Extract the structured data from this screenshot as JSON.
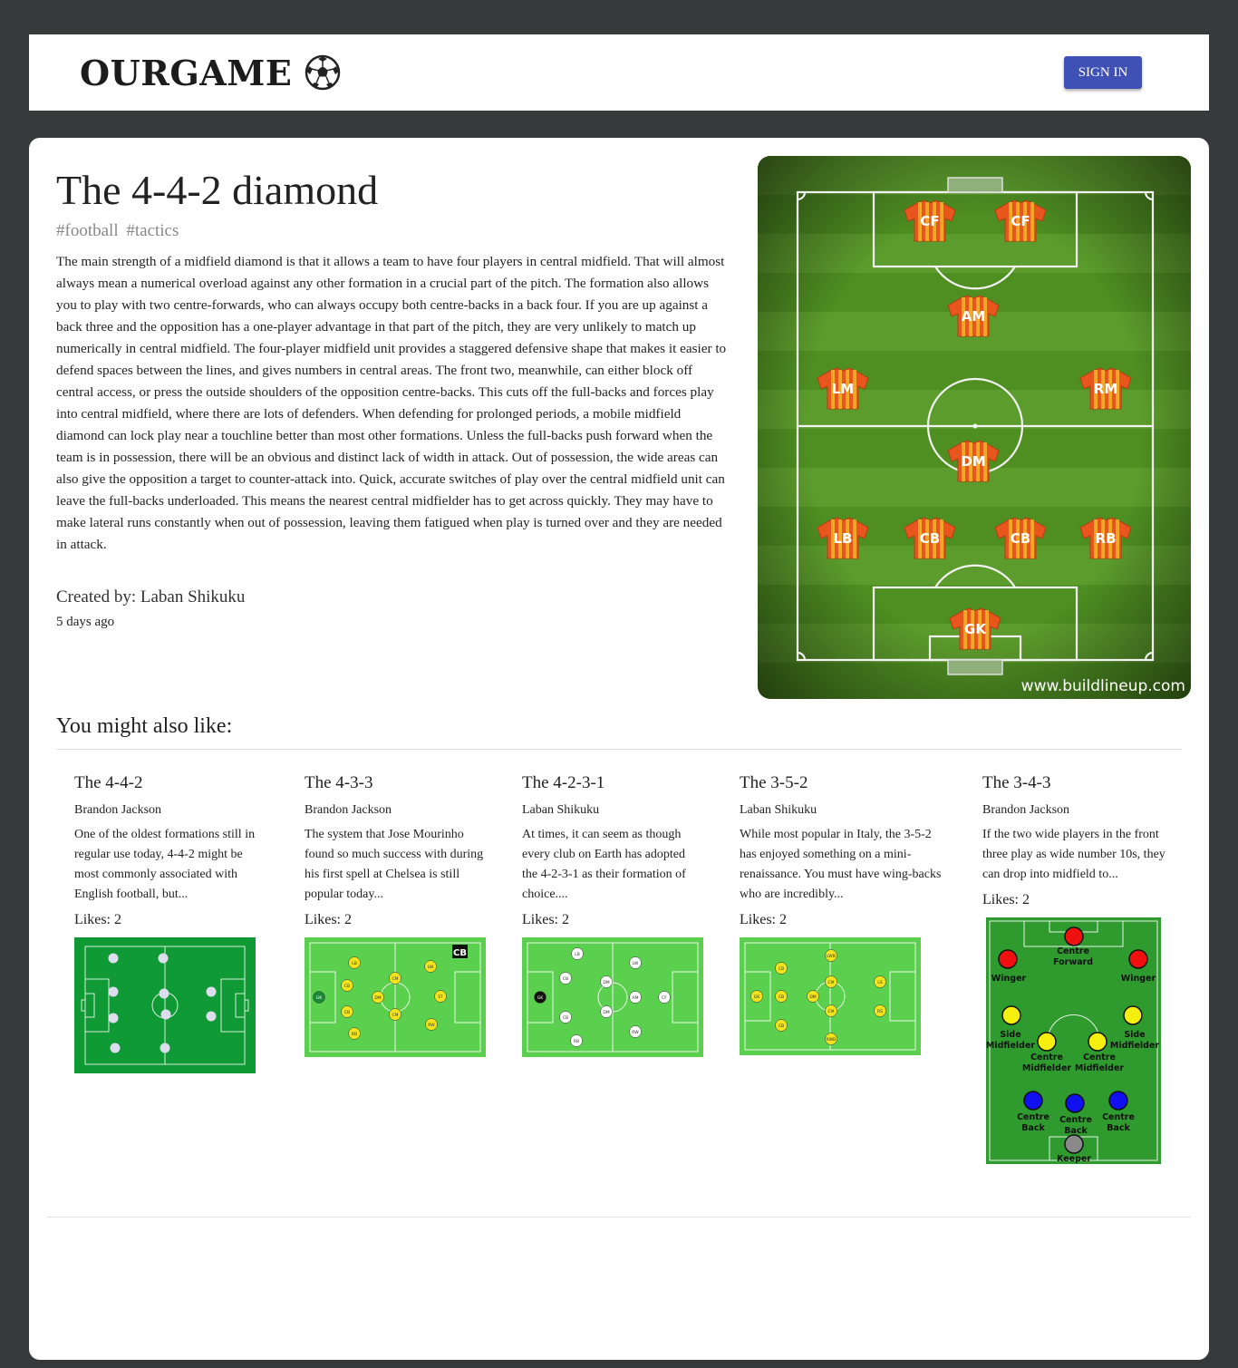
{
  "header": {
    "logo_text": "OURGAME",
    "signin_label": "SIGN IN",
    "accent": "#3f51b5"
  },
  "post": {
    "title": "The 4-4-2 diamond",
    "tags": [
      "#football",
      "#tactics"
    ],
    "body": "The main strength of a midfield diamond is that it allows a team to have four players in central midfield. That will almost always mean a numerical overload against any other formation in a crucial part of the pitch. The formation also allows you to play with two centre-forwards, who can always occupy both centre-backs in a back four. If you are up against a back three and the opposition has a one-player advantage in that part of the pitch, they are very unlikely to match up numerically in central midfield. The four-player midfield unit provides a staggered defensive shape that makes it easier to defend spaces between the lines, and gives numbers in central areas. The front two, meanwhile, can either block off central access, or press the outside shoulders of the opposition centre-backs. This cuts off the full-backs and forces play into central midfield, where there are lots of defenders. When defending for prolonged periods, a mobile midfield diamond can lock play near a touchline better than most other formations. Unless the full-backs push forward when the team is in possession, there will be an obvious and distinct lack of width in attack. Out of possession, the wide areas can also give the opposition a target to counter-attack into. Quick, accurate switches of play over the central midfield unit can leave the full-backs underloaded. This means the nearest central midfielder has to get across quickly. They may have to make lateral runs constantly when out of possession, leaving them fatigued when play is turned over and they are needed in attack.",
    "author": "Created by: Laban Shikuku",
    "time": "5 days ago",
    "image": {
      "watermark": "www.buildlineup.com",
      "positions": [
        "CF",
        "CF",
        "AM",
        "LM",
        "RM",
        "DM",
        "LB",
        "CB",
        "CB",
        "RB",
        "GK"
      ]
    }
  },
  "also": {
    "heading": "You might also like:",
    "items": [
      {
        "title": "The 4-4-2",
        "author": "Brandon Jackson",
        "desc": "One of the oldest formations still in regular use today, 4-4-2 might be most commonly associated with English football, but...",
        "likes": "Likes: 2"
      },
      {
        "title": "The 4-3-3",
        "author": "Brandon Jackson",
        "desc": "The system that Jose Mourinho found so much success with during his first spell at Chelsea is still popular today...",
        "likes": "Likes: 2",
        "badge": "CB",
        "players": [
          "GK",
          "LB",
          "CB",
          "CB",
          "RB",
          "CM",
          "DM",
          "CM",
          "LW",
          "ST",
          "RW"
        ]
      },
      {
        "title": "The 4-2-3-1",
        "author": "Laban Shikuku",
        "desc": "At times, it can seem as though every club on Earth has adopted the 4-2-3-1 as their formation of choice....",
        "likes": "Likes: 2",
        "players": [
          "GK",
          "LB",
          "CB",
          "CB",
          "RB",
          "DM",
          "DM",
          "LW",
          "AM",
          "RW",
          "CF"
        ]
      },
      {
        "title": "The 3-5-2",
        "author": "Laban Shikuku",
        "desc": "While most popular in Italy, the 3-5-2 has enjoyed something on a mini-renaissance. You must have wing-backs who are incredibly...",
        "likes": "Likes: 2",
        "players": [
          "GK",
          "CB",
          "CB",
          "CB",
          "DM",
          "LWB",
          "CM",
          "CM",
          "RWB",
          "LS",
          "RS"
        ]
      },
      {
        "title": "The 3-4-3",
        "author": "Brandon Jackson",
        "desc": "If the two wide players in the front three play as wide number 10s, they can drop into midfield to...",
        "likes": "Likes: 2",
        "players": [
          "Centre Forward",
          "Winger",
          "Winger",
          "Side Midfielder",
          "Centre Midfielder",
          "Centre Midfielder",
          "Side Midfielder",
          "Centre Back",
          "Centre Back",
          "Centre Back",
          "Keeper"
        ]
      }
    ]
  }
}
